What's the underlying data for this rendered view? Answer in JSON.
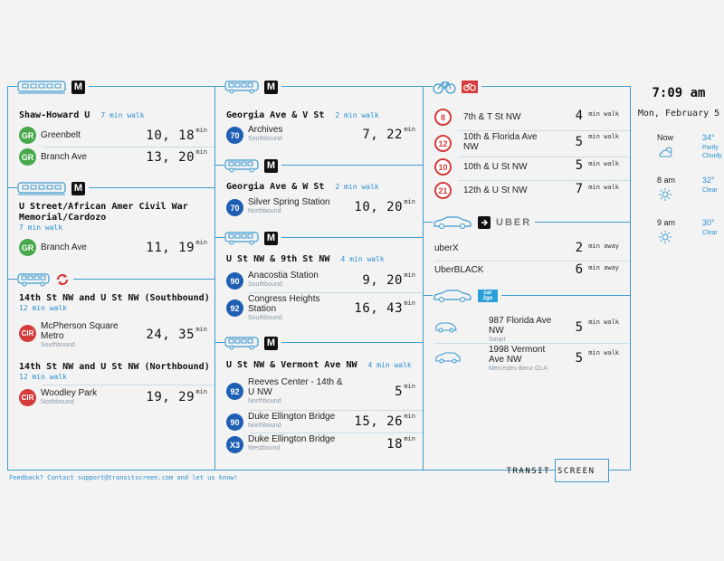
{
  "metro": [
    {
      "stop": "Shaw-Howard U",
      "walk": "7 min walk",
      "routes": [
        {
          "code": "GR",
          "name": "Greenbelt",
          "times": "10, 18",
          "unit": "min"
        },
        {
          "code": "GR",
          "name": "Branch Ave",
          "times": "13, 20",
          "unit": "min"
        }
      ]
    },
    {
      "stop": "U Street/African Amer Civil War Memorial/Cardozo",
      "stop_line1": "U Street/African Amer Civil War",
      "stop_line2": "Memorial/Cardozo",
      "walk": "7 min walk",
      "routes": [
        {
          "code": "GR",
          "name": "Branch Ave",
          "times": "11, 19",
          "unit": "min"
        }
      ]
    }
  ],
  "circulator": [
    {
      "stop": "14th St NW and U St NW (Southbound)",
      "walk": "12 min walk",
      "routes": [
        {
          "code": "CIR",
          "name1": "McPherson Square",
          "name2": "Metro",
          "sub": "Southbound",
          "times": "24, 35",
          "unit": "min"
        }
      ]
    },
    {
      "stop": "14th St NW and U St NW (Northbound)",
      "walk": "12 min walk",
      "routes": [
        {
          "code": "CIR",
          "name": "Woodley Park",
          "sub": "Northbound",
          "times": "19, 29",
          "unit": "min"
        }
      ]
    }
  ],
  "bus": [
    {
      "stop": "Georgia Ave & V St",
      "walk": "2 min walk",
      "routes": [
        {
          "code": "70",
          "name": "Archives",
          "sub": "Southbound",
          "times": "7, 22",
          "unit": "min"
        }
      ]
    },
    {
      "stop": "Georgia Ave & W St",
      "walk": "2 min walk",
      "routes": [
        {
          "code": "70",
          "name": "Silver Spring Station",
          "sub": "Northbound",
          "times": "10, 20",
          "unit": "min"
        }
      ]
    },
    {
      "stop": "U St NW & 9th St NW",
      "walk": "4 min walk",
      "routes": [
        {
          "code": "90",
          "name": "Anacostia Station",
          "sub": "Southbound",
          "times": "9, 20",
          "unit": "min"
        },
        {
          "code": "92",
          "name1": "Congress Heights",
          "name2": "Station",
          "sub": "Southbound",
          "times": "16, 43",
          "unit": "min"
        }
      ]
    },
    {
      "stop": "U St NW & Vermont Ave NW",
      "walk": "4 min walk",
      "routes": [
        {
          "code": "92",
          "name1": "Reeves Center - 14th &",
          "name2": "U NW",
          "sub": "Northbound",
          "times": "5",
          "unit": "min"
        },
        {
          "code": "90",
          "name": "Duke Ellington Bridge",
          "sub": "Northbound",
          "times": "15, 26",
          "unit": "min"
        },
        {
          "code": "X3",
          "name": "Duke Ellington Bridge",
          "sub": "Westbound",
          "times": "18",
          "unit": "min"
        }
      ]
    }
  ],
  "bikeshare": [
    {
      "count": "8",
      "name": "7th & T St NW",
      "walk": "4",
      "unit": "min walk"
    },
    {
      "count": "12",
      "name1": "10th & Florida Ave",
      "name2": "NW",
      "walk": "5",
      "unit": "min walk"
    },
    {
      "count": "10",
      "name": "10th & U St NW",
      "walk": "5",
      "unit": "min walk"
    },
    {
      "count": "21",
      "name": "12th & U St NW",
      "walk": "7",
      "unit": "min walk"
    }
  ],
  "uber": {
    "label": "UBER",
    "badge": "U",
    "options": [
      {
        "name": "uberX",
        "eta": "2",
        "unit": "min away"
      },
      {
        "name": "UberBLACK",
        "eta": "6",
        "unit": "min away"
      }
    ]
  },
  "car2go": {
    "badge_line1": "car",
    "badge_line2": "2go",
    "cars": [
      {
        "name": "987 Florida Ave NW",
        "name1": "987 Florida Ave",
        "name2": "NW",
        "sub": "Smart",
        "walk": "5",
        "unit": "min walk"
      },
      {
        "name1": "1998 Vermont",
        "name2": "Ave NW",
        "sub": "Mercedes-Benz GLA",
        "walk": "5",
        "unit": "min walk"
      }
    ]
  },
  "clock": {
    "time": "7:09 am",
    "date": "Mon, February 5"
  },
  "weather": [
    {
      "time": "Now",
      "temp": "34°",
      "cond": "Partly Cloudy",
      "icon": "partly-cloudy-icon"
    },
    {
      "time": "8 am",
      "temp": "32°",
      "cond": "Clear",
      "icon": "sun-icon"
    },
    {
      "time": "9 am",
      "temp": "30°",
      "cond": "Clear",
      "icon": "sun-icon"
    }
  ],
  "footer": {
    "feedback": "Feedback? Contact support@transitscreen.com and let us know!",
    "brand1": "TRANSIT",
    "brand2": "SCREEN"
  },
  "metro_badge": "M",
  "colors": {
    "accent": "#3c9ad0",
    "green_line": "#47a84c",
    "circulator": "#d63b3b",
    "metrobus": "#1e5fb3"
  }
}
